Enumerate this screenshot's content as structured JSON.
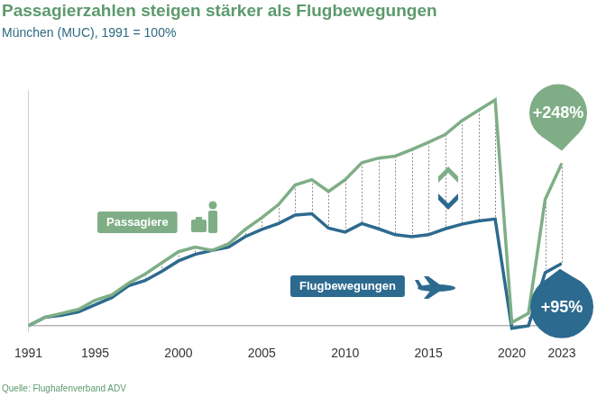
{
  "chart_data": {
    "type": "line",
    "title": "Passagierzahlen steigen stärker als Flugbewegungen",
    "subtitle": "München (MUC), 1991 = 100%",
    "source": "Quelle: Flughafenverband ADV",
    "x": [
      1991,
      1992,
      1993,
      1994,
      1995,
      1996,
      1997,
      1998,
      1999,
      2000,
      2001,
      2002,
      2003,
      2004,
      2005,
      2006,
      2007,
      2008,
      2009,
      2010,
      2011,
      2012,
      2013,
      2014,
      2015,
      2016,
      2017,
      2018,
      2019,
      2020,
      2021,
      2022,
      2023
    ],
    "series": [
      {
        "name": "Passagiere",
        "color": "#7fae86",
        "values": [
          100,
          113,
          119,
          125,
          139,
          147,
          165,
          179,
          196,
          213,
          220,
          215,
          225,
          247,
          265,
          285,
          315,
          323,
          305,
          323,
          349,
          356,
          359,
          369,
          380,
          392,
          413,
          429,
          445,
          105,
          119,
          293,
          348
        ]
      },
      {
        "name": "Flugbewegungen",
        "color": "#2d6a8f",
        "values": [
          100,
          113,
          116,
          121,
          132,
          143,
          161,
          169,
          183,
          199,
          209,
          215,
          220,
          236,
          247,
          256,
          269,
          271,
          249,
          243,
          256,
          248,
          239,
          236,
          239,
          248,
          255,
          260,
          263,
          96,
          100,
          181,
          195
        ]
      }
    ],
    "xlim": [
      1991,
      2023
    ],
    "xticks": [
      1991,
      1995,
      2000,
      2005,
      2010,
      2015,
      2020,
      2023
    ],
    "ylim": [
      90,
      460
    ],
    "yticks": [
      100
    ],
    "grid": true,
    "tick_labels": "x",
    "annotations": [
      {
        "series": "Passagiere",
        "x": 2023,
        "text": "+248%"
      },
      {
        "series": "Flugbewegungen",
        "x": 2023,
        "text": "+95%"
      }
    ]
  }
}
